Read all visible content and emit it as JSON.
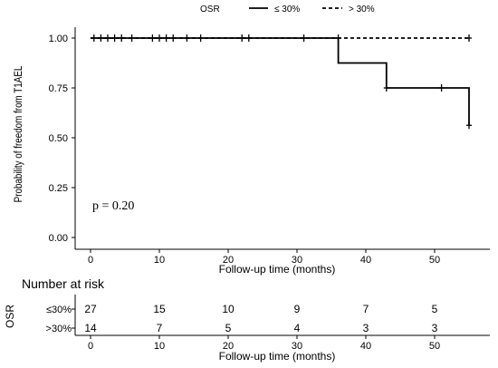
{
  "legend": {
    "title": "OSR",
    "items": [
      {
        "label": "≤ 30%",
        "style": "solid"
      },
      {
        "label": "> 30%",
        "style": "dashed"
      }
    ]
  },
  "chart_data": {
    "type": "line",
    "subtype": "kaplan-meier",
    "ylabel": "Probability of freedom from T1AEL",
    "xlabel": "Follow-up time (months)",
    "xlim": [
      0,
      56
    ],
    "ylim": [
      0,
      1
    ],
    "x_ticks": [
      "0",
      "10",
      "20",
      "30",
      "40",
      "50"
    ],
    "y_ticks": [
      "0.00",
      "0.25",
      "0.50",
      "0.75",
      "1.00"
    ],
    "y_tick_values": [
      0,
      0.25,
      0.5,
      0.75,
      1.0
    ],
    "annotation": "p = 0.20",
    "series": [
      {
        "name": "≤ 30%",
        "style": "solid",
        "steps": [
          [
            0,
            1.0
          ],
          [
            36,
            0.875
          ],
          [
            43,
            0.75
          ],
          [
            55,
            0.5625
          ]
        ],
        "end": 55,
        "censored": [
          [
            0.5,
            1.0
          ],
          [
            1.5,
            1.0
          ],
          [
            2.5,
            1.0
          ],
          [
            3.5,
            1.0
          ],
          [
            4.5,
            1.0
          ],
          [
            6,
            1.0
          ],
          [
            9,
            1.0
          ],
          [
            10,
            1.0
          ],
          [
            11,
            1.0
          ],
          [
            12,
            1.0
          ],
          [
            14,
            1.0
          ],
          [
            16,
            1.0
          ],
          [
            22,
            1.0
          ],
          [
            23,
            1.0
          ],
          [
            31,
            1.0
          ],
          [
            36,
            1.0
          ],
          [
            43,
            0.75
          ],
          [
            51,
            0.75
          ],
          [
            55,
            0.5625
          ]
        ]
      },
      {
        "name": "> 30%",
        "style": "dashed",
        "steps": [
          [
            0,
            1.0
          ]
        ],
        "end": 55,
        "censored": [
          [
            55,
            1.0
          ]
        ]
      }
    ]
  },
  "risk_table": {
    "title": "Number at risk",
    "ylabel": "OSR",
    "xlabel": "Follow-up time (months)",
    "times": [
      0,
      10,
      20,
      30,
      40,
      50
    ],
    "rows": [
      {
        "label": "≤30%",
        "counts": [
          "27",
          "15",
          "10",
          "9",
          "7",
          "5"
        ]
      },
      {
        "label": ">30%",
        "counts": [
          "14",
          "7",
          "5",
          "4",
          "3",
          "3"
        ]
      }
    ]
  }
}
